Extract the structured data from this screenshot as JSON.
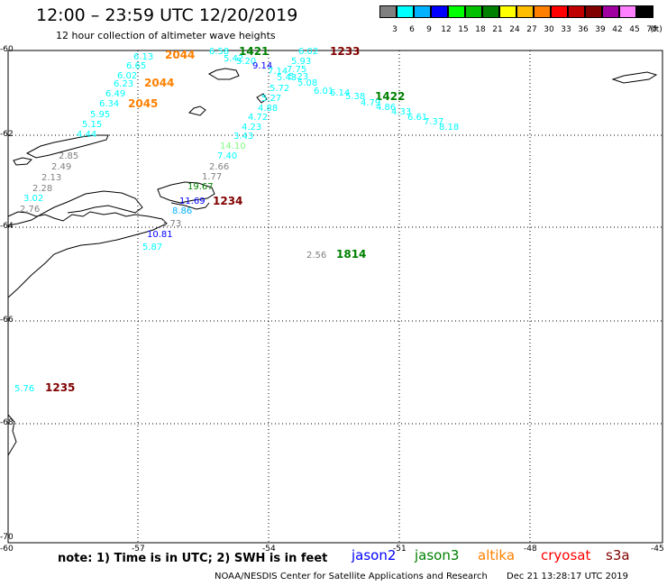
{
  "title": "12:00 – 23:59 UTC 12/20/2019",
  "subtitle": "12 hour collection of altimeter wave heights",
  "scale": {
    "unit": "(ft)",
    "colors": [
      "#808080",
      "#00ffff",
      "#00b2ff",
      "#0000ff",
      "#00ff00",
      "#00c000",
      "#008000",
      "#ffff00",
      "#ffbf00",
      "#ff8000",
      "#ff0000",
      "#c00000",
      "#800000",
      "#a000a0",
      "#ff80ff",
      "#000000"
    ],
    "labels": [
      "3",
      "6",
      "9",
      "12",
      "15",
      "18",
      "21",
      "24",
      "27",
      "30",
      "33",
      "36",
      "39",
      "42",
      "45",
      "70"
    ]
  },
  "axes": {
    "lat_labels": [
      "-60",
      "-62",
      "-64",
      "-66",
      "-68",
      "-70"
    ],
    "lon_labels": [
      "-60",
      "-57",
      "-54",
      "-51",
      "-48",
      "-45"
    ]
  },
  "note": "note:  1) Time is in UTC;  2) SWH is in feet",
  "legend": [
    {
      "name": "jason2",
      "color": "#0000ff"
    },
    {
      "name": "jason3",
      "color": "#008000"
    },
    {
      "name": "altika",
      "color": "#ff8000"
    },
    {
      "name": "cryosat",
      "color": "#ff0000"
    },
    {
      "name": "s3a",
      "color": "#800000"
    }
  ],
  "footer": {
    "agency": "NOAA/NESDIS Center for Satellite Applications and Research",
    "timestamp": "Dec 21 13:28:17 UTC 2019"
  },
  "time_labels": [
    {
      "text": "2044",
      "color": "#ff8000"
    },
    {
      "text": "2044",
      "color": "#ff8000"
    },
    {
      "text": "2045",
      "color": "#ff8000"
    },
    {
      "text": "1421",
      "color": "#008000"
    },
    {
      "text": "1233",
      "color": "#800000"
    },
    {
      "text": "1422",
      "color": "#008000"
    },
    {
      "text": "1234",
      "color": "#800000"
    },
    {
      "text": "1814",
      "color": "#008000"
    },
    {
      "text": "1235",
      "color": "#800000"
    }
  ],
  "observations": [
    {
      "v": "6.13",
      "c": "#00ffff"
    },
    {
      "v": "6.65",
      "c": "#00ffff"
    },
    {
      "v": "6.02",
      "c": "#00ffff"
    },
    {
      "v": "6.23",
      "c": "#00ffff"
    },
    {
      "v": "6.49",
      "c": "#00ffff"
    },
    {
      "v": "6.34",
      "c": "#00ffff"
    },
    {
      "v": "5.95",
      "c": "#00ffff"
    },
    {
      "v": "5.15",
      "c": "#00ffff"
    },
    {
      "v": "4.44",
      "c": "#00ffff"
    },
    {
      "v": "2.85",
      "c": "#808080"
    },
    {
      "v": "2.49",
      "c": "#808080"
    },
    {
      "v": "2.13",
      "c": "#808080"
    },
    {
      "v": "2.28",
      "c": "#808080"
    },
    {
      "v": "3.02",
      "c": "#00ffff"
    },
    {
      "v": "2.76",
      "c": "#808080"
    },
    {
      "v": "6.58",
      "c": "#00ffff"
    },
    {
      "v": "5.42",
      "c": "#00ffff"
    },
    {
      "v": "5.20",
      "c": "#00ffff"
    },
    {
      "v": "9.14",
      "c": "#0000ff"
    },
    {
      "v": "6.02",
      "c": "#00ffff"
    },
    {
      "v": "5.93",
      "c": "#00ffff"
    },
    {
      "v": "7.75",
      "c": "#00ffff"
    },
    {
      "v": "7.14",
      "c": "#00ffff"
    },
    {
      "v": "5.43",
      "c": "#00ffff"
    },
    {
      "v": "5.23",
      "c": "#00ffff"
    },
    {
      "v": "5.08",
      "c": "#00ffff"
    },
    {
      "v": "5.72",
      "c": "#00ffff"
    },
    {
      "v": "6.01",
      "c": "#00ffff"
    },
    {
      "v": "6.14",
      "c": "#00ffff"
    },
    {
      "v": "5.38",
      "c": "#00ffff"
    },
    {
      "v": "4.79",
      "c": "#00ffff"
    },
    {
      "v": "4.86",
      "c": "#00ffff"
    },
    {
      "v": "4.33",
      "c": "#00ffff"
    },
    {
      "v": "5.27",
      "c": "#00ffff"
    },
    {
      "v": "4.88",
      "c": "#00ffff"
    },
    {
      "v": "6.61",
      "c": "#00ffff"
    },
    {
      "v": "7.37",
      "c": "#00ffff"
    },
    {
      "v": "8.18",
      "c": "#00ffff"
    },
    {
      "v": "4.72",
      "c": "#00ffff"
    },
    {
      "v": "4.23",
      "c": "#00ffff"
    },
    {
      "v": "3.43",
      "c": "#00ffff"
    },
    {
      "v": "14.10",
      "c": "#80ff80"
    },
    {
      "v": "7.40",
      "c": "#00ffff"
    },
    {
      "v": "2.66",
      "c": "#808080"
    },
    {
      "v": "1.77",
      "c": "#808080"
    },
    {
      "v": "19.67",
      "c": "#008000"
    },
    {
      "v": "11.69",
      "c": "#0000ff"
    },
    {
      "v": "8.86",
      "c": "#00b2ff"
    },
    {
      "v": "1.73",
      "c": "#808080"
    },
    {
      "v": "10.81",
      "c": "#0000ff"
    },
    {
      "v": "5.87",
      "c": "#00ffff"
    },
    {
      "v": "2.56",
      "c": "#808080"
    },
    {
      "v": "5.76",
      "c": "#00ffff"
    }
  ]
}
